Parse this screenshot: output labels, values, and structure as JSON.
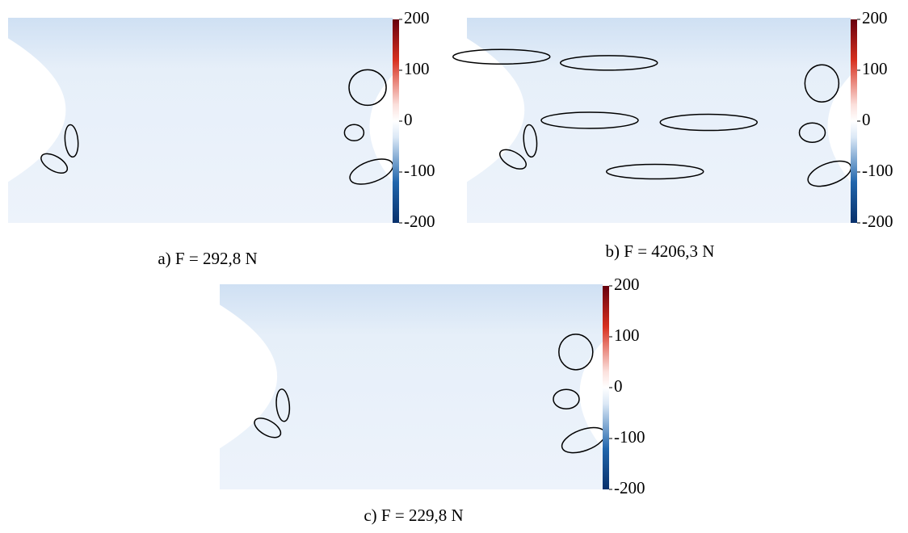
{
  "panels": [
    {
      "caption": "a) F = 292,8 N",
      "colorbar": {
        "clim": [
          -200,
          200
        ],
        "ticks": [
          200,
          100,
          0,
          -100,
          -200
        ]
      }
    },
    {
      "caption": "b) F = 4206,3 N",
      "colorbar": {
        "clim": [
          -200,
          200
        ],
        "ticks": [
          200,
          100,
          0,
          -100,
          -200
        ]
      }
    },
    {
      "caption": "c) F = 229,8 N",
      "colorbar": {
        "clim": [
          -200,
          200
        ],
        "ticks": [
          200,
          100,
          0,
          -100,
          -200
        ]
      }
    }
  ]
}
